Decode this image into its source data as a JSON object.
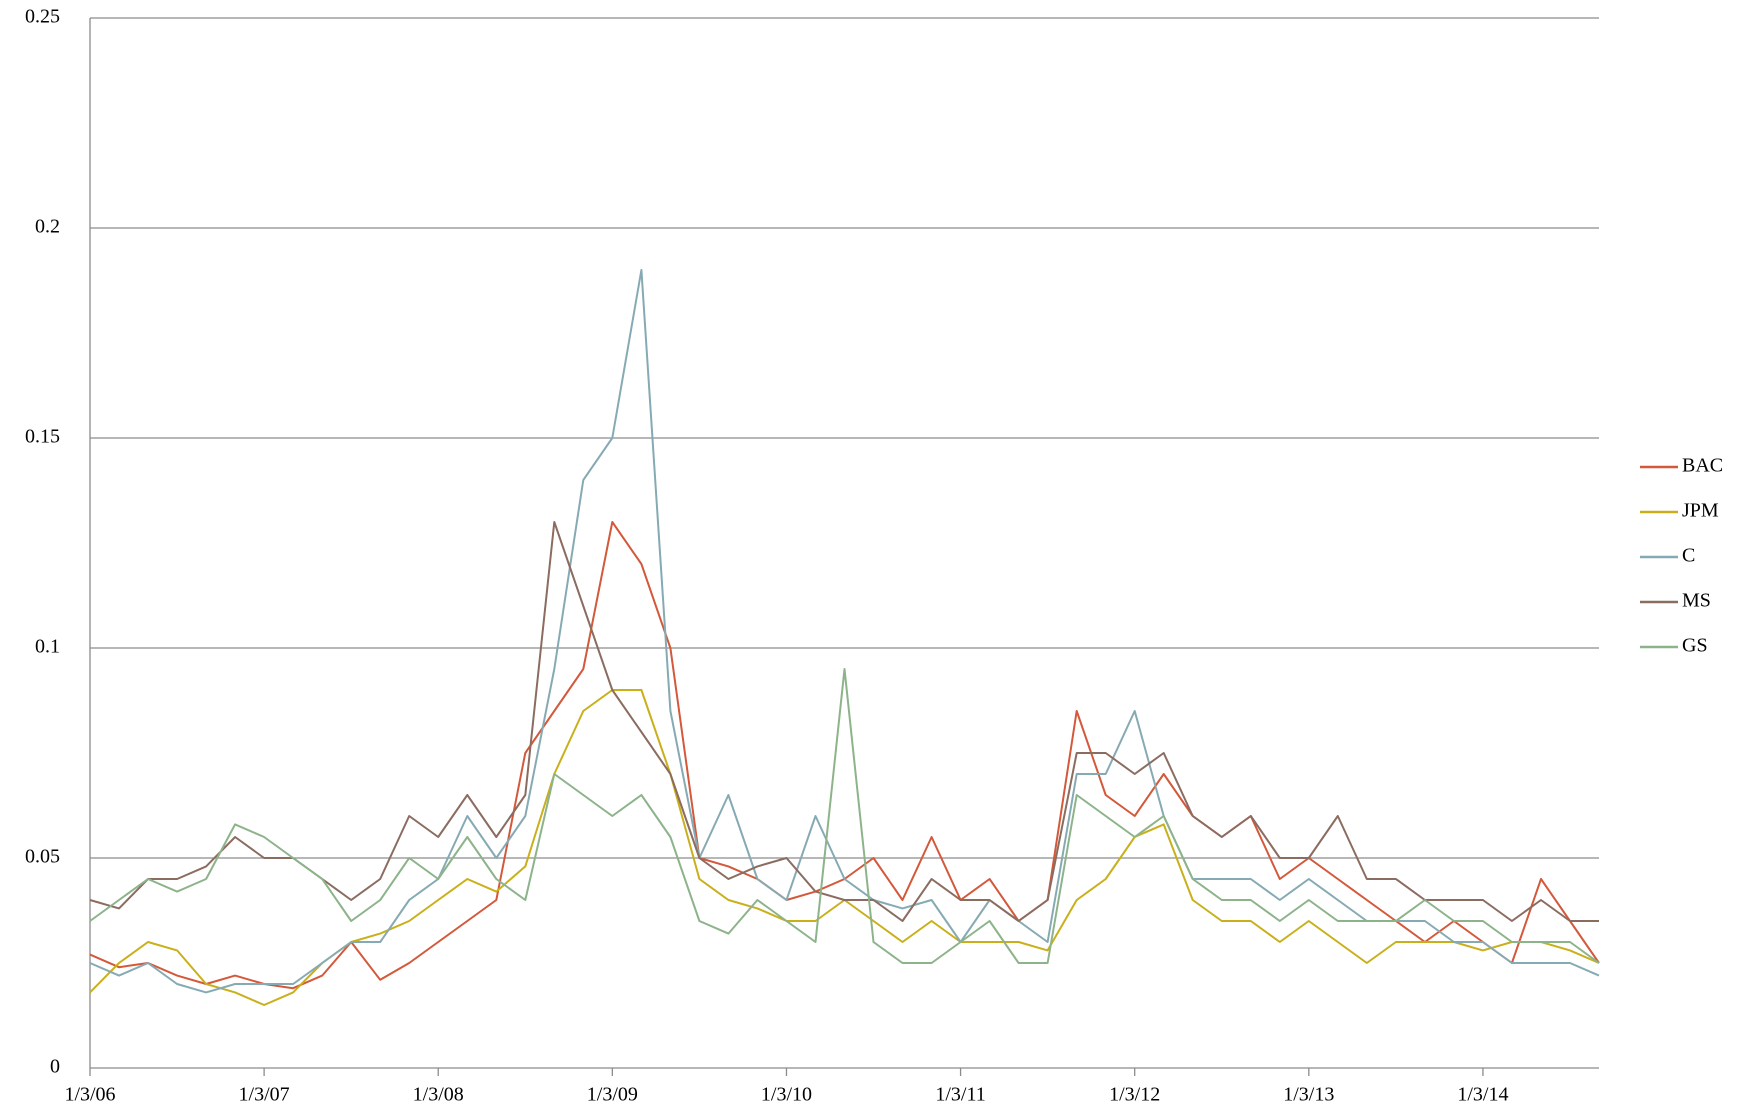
{
  "chart_data": {
    "type": "line",
    "categories": [
      "1/3/06",
      null,
      null,
      null,
      null,
      null,
      "1/3/07",
      null,
      null,
      null,
      null,
      null,
      "1/3/08",
      null,
      null,
      null,
      null,
      null,
      "1/3/09",
      null,
      null,
      null,
      null,
      null,
      "1/3/10",
      null,
      null,
      null,
      null,
      null,
      "1/3/11",
      null,
      null,
      null,
      null,
      null,
      "1/3/12",
      null,
      null,
      null,
      null,
      null,
      "1/3/13",
      null,
      null,
      null,
      null,
      null,
      "1/3/14",
      null,
      null,
      null,
      null
    ],
    "series": [
      {
        "name": "BAC",
        "color": "#d4583a",
        "values": [
          0.027,
          0.024,
          0.025,
          0.022,
          0.02,
          0.022,
          0.02,
          0.019,
          0.022,
          0.03,
          0.021,
          0.025,
          0.03,
          0.035,
          0.04,
          0.075,
          0.085,
          0.095,
          0.13,
          0.12,
          0.1,
          0.05,
          0.048,
          0.045,
          0.04,
          0.042,
          0.045,
          0.05,
          0.04,
          0.055,
          0.04,
          0.045,
          0.035,
          0.04,
          0.085,
          0.065,
          0.06,
          0.07,
          0.06,
          0.055,
          0.06,
          0.045,
          0.05,
          0.045,
          0.04,
          0.035,
          0.03,
          0.035,
          0.03,
          0.025,
          0.045,
          0.035,
          0.025
        ]
      },
      {
        "name": "JPM",
        "color": "#c9b01a",
        "values": [
          0.018,
          0.025,
          0.03,
          0.028,
          0.02,
          0.018,
          0.015,
          0.018,
          0.025,
          0.03,
          0.032,
          0.035,
          0.04,
          0.045,
          0.042,
          0.048,
          0.07,
          0.085,
          0.09,
          0.09,
          0.07,
          0.045,
          0.04,
          0.038,
          0.035,
          0.035,
          0.04,
          0.035,
          0.03,
          0.035,
          0.03,
          0.03,
          0.03,
          0.028,
          0.04,
          0.045,
          0.055,
          0.058,
          0.04,
          0.035,
          0.035,
          0.03,
          0.035,
          0.03,
          0.025,
          0.03,
          0.03,
          0.03,
          0.028,
          0.03,
          0.03,
          0.028,
          0.025
        ]
      },
      {
        "name": "C",
        "color": "#86aab3",
        "values": [
          0.025,
          0.022,
          0.025,
          0.02,
          0.018,
          0.02,
          0.02,
          0.02,
          0.025,
          0.03,
          0.03,
          0.04,
          0.045,
          0.06,
          0.05,
          0.06,
          0.095,
          0.14,
          0.15,
          0.19,
          0.085,
          0.05,
          0.065,
          0.045,
          0.04,
          0.06,
          0.045,
          0.04,
          0.038,
          0.04,
          0.03,
          0.04,
          0.035,
          0.03,
          0.07,
          0.07,
          0.085,
          0.06,
          0.045,
          0.045,
          0.045,
          0.04,
          0.045,
          0.04,
          0.035,
          0.035,
          0.035,
          0.03,
          0.03,
          0.025,
          0.025,
          0.025,
          0.022
        ]
      },
      {
        "name": "MS",
        "color": "#8b6c60",
        "values": [
          0.04,
          0.038,
          0.045,
          0.045,
          0.048,
          0.055,
          0.05,
          0.05,
          0.045,
          0.04,
          0.045,
          0.06,
          0.055,
          0.065,
          0.055,
          0.065,
          0.13,
          0.11,
          0.09,
          0.08,
          0.07,
          0.05,
          0.045,
          0.048,
          0.05,
          0.042,
          0.04,
          0.04,
          0.035,
          0.045,
          0.04,
          0.04,
          0.035,
          0.04,
          0.075,
          0.075,
          0.07,
          0.075,
          0.06,
          0.055,
          0.06,
          0.05,
          0.05,
          0.06,
          0.045,
          0.045,
          0.04,
          0.04,
          0.04,
          0.035,
          0.04,
          0.035,
          0.035
        ]
      },
      {
        "name": "GS",
        "color": "#8db38a",
        "values": [
          0.035,
          0.04,
          0.045,
          0.042,
          0.045,
          0.058,
          0.055,
          0.05,
          0.045,
          0.035,
          0.04,
          0.05,
          0.045,
          0.055,
          0.045,
          0.04,
          0.07,
          0.065,
          0.06,
          0.065,
          0.055,
          0.035,
          0.032,
          0.04,
          0.035,
          0.03,
          0.095,
          0.03,
          0.025,
          0.025,
          0.03,
          0.035,
          0.025,
          0.025,
          0.065,
          0.06,
          0.055,
          0.06,
          0.045,
          0.04,
          0.04,
          0.035,
          0.04,
          0.035,
          0.035,
          0.035,
          0.04,
          0.035,
          0.035,
          0.03,
          0.03,
          0.03,
          0.025
        ]
      }
    ],
    "ylim": [
      0,
      0.25
    ],
    "yticks": [
      0,
      0.05,
      0.1,
      0.15,
      0.2,
      0.25
    ],
    "grid": true,
    "legend": "right"
  }
}
